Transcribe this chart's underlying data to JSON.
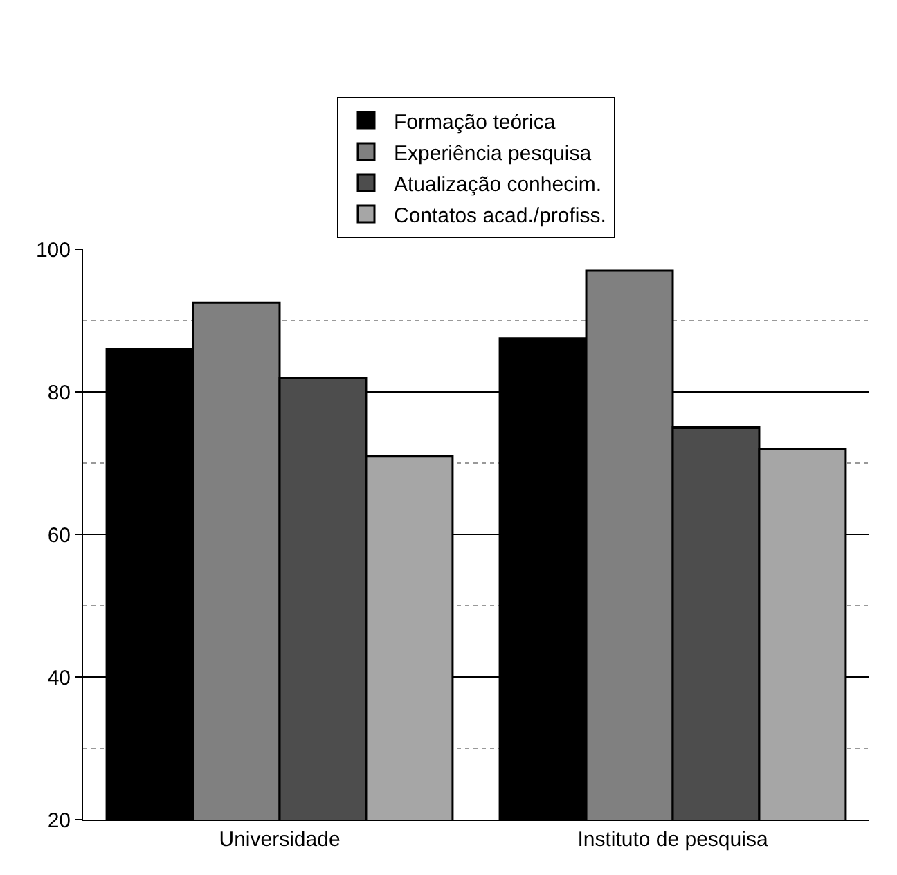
{
  "chart_data": {
    "type": "bar",
    "categories": [
      "Universidade",
      "Instituto de pesquisa"
    ],
    "series": [
      {
        "name": "Formação teórica",
        "color": "#000000",
        "values": [
          86,
          87.5
        ]
      },
      {
        "name": "Experiência pesquisa",
        "color": "#808080",
        "values": [
          92.5,
          97
        ]
      },
      {
        "name": "Atualização conhecim.",
        "color": "#4d4d4d",
        "values": [
          82,
          75
        ]
      },
      {
        "name": "Contatos acad./profiss.",
        "color": "#a6a6a6",
        "values": [
          71,
          72
        ]
      }
    ],
    "ylim": [
      20,
      100
    ],
    "yticks": [
      20,
      {
        "value": 30,
        "label": null
      },
      40,
      {
        "value": 50,
        "label": null
      },
      60,
      {
        "value": 70,
        "label": null
      },
      80,
      {
        "value": 90,
        "label": null
      },
      100
    ],
    "grid": true,
    "legend": "top"
  }
}
